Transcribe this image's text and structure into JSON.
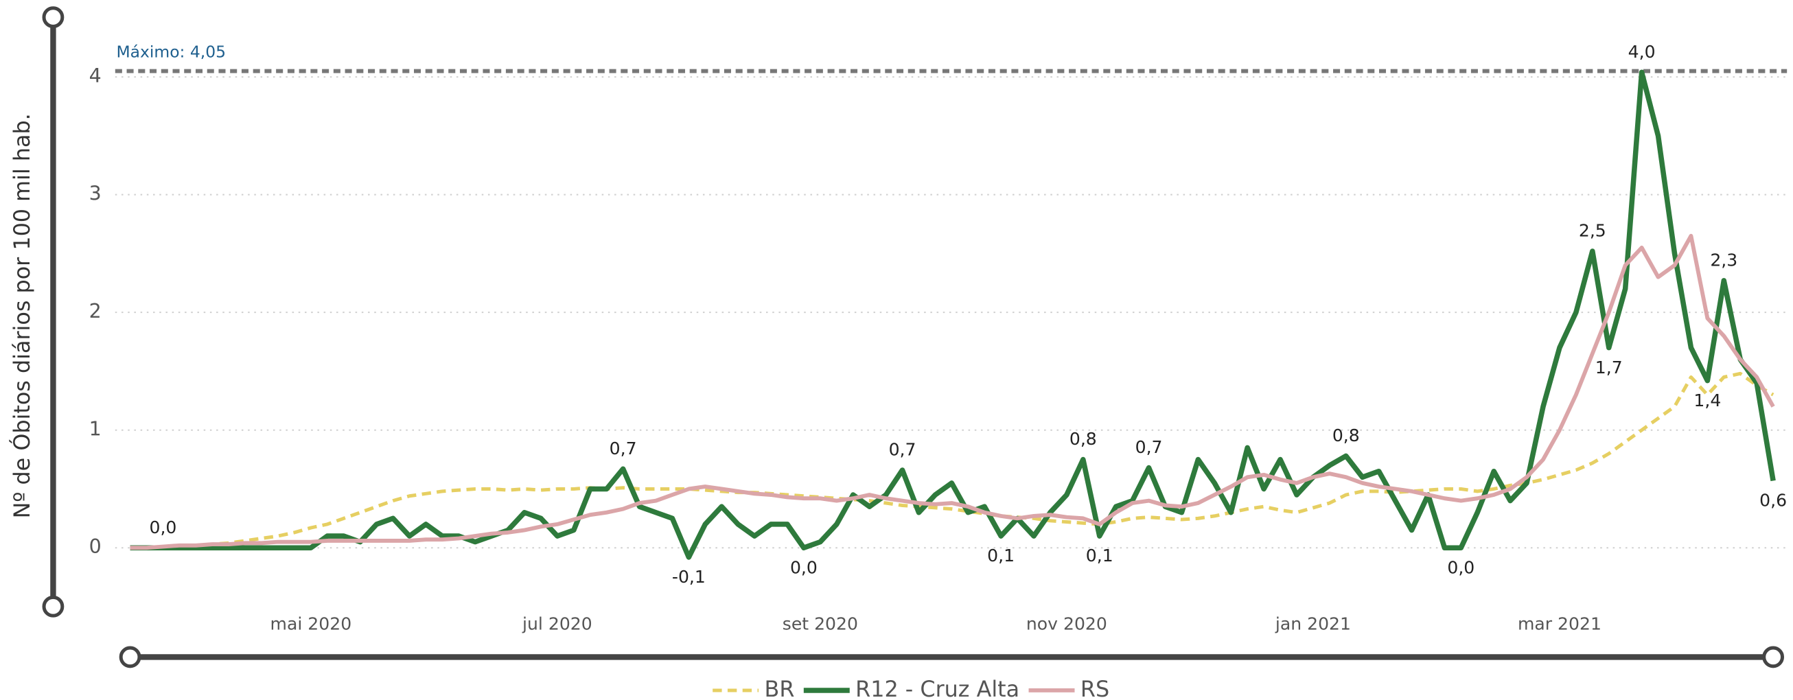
{
  "chart_data": {
    "type": "line",
    "y_axis_label": "Nº de Óbitos diários por 100 mil hab.",
    "categories": [
      null,
      null,
      null,
      null,
      null,
      null,
      null,
      null,
      null,
      null,
      null,
      "mai 2020",
      null,
      null,
      null,
      null,
      null,
      null,
      null,
      null,
      null,
      null,
      null,
      null,
      null,
      null,
      "jul 2020",
      null,
      null,
      null,
      null,
      null,
      null,
      null,
      null,
      null,
      null,
      null,
      null,
      null,
      null,
      null,
      "set 2020",
      null,
      null,
      null,
      null,
      null,
      null,
      null,
      null,
      null,
      null,
      null,
      null,
      null,
      null,
      "nov 2020",
      null,
      null,
      null,
      null,
      null,
      null,
      null,
      null,
      null,
      null,
      null,
      null,
      null,
      null,
      "jan 2021",
      null,
      null,
      null,
      null,
      null,
      null,
      null,
      null,
      null,
      null,
      null,
      null,
      null,
      null,
      "mar 2021",
      null,
      null,
      null,
      null,
      null,
      null,
      null,
      null,
      null,
      null,
      null,
      null,
      null
    ],
    "series": [
      {
        "name": "BR",
        "color": "#e6cf62",
        "style": "dashed",
        "width": 3,
        "values": [
          0,
          0,
          0,
          0.01,
          0.02,
          0.03,
          0.04,
          0.06,
          0.08,
          0.1,
          0.13,
          0.17,
          0.2,
          0.25,
          0.3,
          0.35,
          0.4,
          0.44,
          0.46,
          0.48,
          0.49,
          0.5,
          0.5,
          0.49,
          0.5,
          0.49,
          0.5,
          0.5,
          0.51,
          0.5,
          0.51,
          0.5,
          0.5,
          0.5,
          0.5,
          0.49,
          0.48,
          0.47,
          0.47,
          0.46,
          0.45,
          0.44,
          0.43,
          0.42,
          0.41,
          0.4,
          0.38,
          0.36,
          0.35,
          0.34,
          0.33,
          0.31,
          0.29,
          0.27,
          0.26,
          0.25,
          0.23,
          0.22,
          0.21,
          0.2,
          0.22,
          0.25,
          0.26,
          0.25,
          0.24,
          0.25,
          0.27,
          0.3,
          0.33,
          0.35,
          0.32,
          0.3,
          0.34,
          0.38,
          0.45,
          0.48,
          0.48,
          0.47,
          0.48,
          0.49,
          0.5,
          0.5,
          0.48,
          0.5,
          0.53,
          0.55,
          0.58,
          0.62,
          0.66,
          0.72,
          0.8,
          0.9,
          1.0,
          1.1,
          1.2,
          1.45,
          1.3,
          1.45,
          1.48,
          1.38,
          1.3
        ]
      },
      {
        "name": "R12 - Cruz Alta",
        "color": "#2e7a3c",
        "style": "solid",
        "width": 4.5,
        "values": [
          0,
          0,
          0,
          0,
          0,
          0,
          0,
          0,
          0,
          0,
          0,
          0,
          0.1,
          0.1,
          0.05,
          0.2,
          0.25,
          0.1,
          0.2,
          0.1,
          0.1,
          0.05,
          0.1,
          0.15,
          0.3,
          0.25,
          0.1,
          0.15,
          0.5,
          0.5,
          0.67,
          0.35,
          0.3,
          0.25,
          -0.08,
          0.2,
          0.35,
          0.2,
          0.1,
          0.2,
          0.2,
          0,
          0.05,
          0.2,
          0.45,
          0.35,
          0.45,
          0.66,
          0.3,
          0.45,
          0.55,
          0.3,
          0.35,
          0.1,
          0.25,
          0.1,
          0.3,
          0.45,
          0.75,
          0.1,
          0.35,
          0.4,
          0.68,
          0.35,
          0.3,
          0.75,
          0.55,
          0.3,
          0.85,
          0.5,
          0.75,
          0.45,
          0.6,
          0.7,
          0.78,
          0.6,
          0.65,
          0.4,
          0.15,
          0.45,
          0,
          0,
          0.3,
          0.65,
          0.4,
          0.55,
          1.2,
          1.7,
          2.0,
          2.52,
          1.7,
          2.2,
          4.04,
          3.5,
          2.5,
          1.7,
          1.42,
          2.27,
          1.6,
          1.4,
          0.57
        ],
        "value_labels": [
          null,
          null,
          "0,0",
          null,
          null,
          null,
          null,
          null,
          null,
          null,
          null,
          null,
          null,
          null,
          null,
          null,
          null,
          null,
          null,
          null,
          null,
          null,
          null,
          null,
          null,
          null,
          null,
          null,
          null,
          null,
          "0,7",
          null,
          null,
          null,
          "-0,1",
          null,
          null,
          null,
          null,
          null,
          null,
          "0,0",
          null,
          null,
          null,
          null,
          null,
          "0,7",
          null,
          null,
          null,
          null,
          null,
          "0,1",
          null,
          null,
          null,
          null,
          "0,8",
          "0,1",
          null,
          null,
          "0,7",
          null,
          null,
          null,
          null,
          null,
          null,
          null,
          null,
          null,
          null,
          null,
          "0,8",
          null,
          null,
          null,
          null,
          null,
          null,
          "0,0",
          null,
          null,
          null,
          null,
          null,
          null,
          null,
          "2,5",
          "1,7",
          null,
          "4,0",
          null,
          null,
          null,
          "1,4",
          "2,3",
          null,
          null,
          "0,6"
        ]
      },
      {
        "name": "RS",
        "color": "#dba5a8",
        "style": "solid",
        "width": 3.5,
        "values": [
          0,
          0,
          0.01,
          0.02,
          0.02,
          0.03,
          0.03,
          0.04,
          0.04,
          0.05,
          0.05,
          0.05,
          0.06,
          0.06,
          0.06,
          0.06,
          0.06,
          0.06,
          0.07,
          0.07,
          0.08,
          0.1,
          0.12,
          0.13,
          0.15,
          0.18,
          0.2,
          0.24,
          0.28,
          0.3,
          0.33,
          0.38,
          0.4,
          0.45,
          0.5,
          0.52,
          0.5,
          0.48,
          0.46,
          0.45,
          0.43,
          0.42,
          0.42,
          0.4,
          0.42,
          0.45,
          0.42,
          0.4,
          0.38,
          0.37,
          0.38,
          0.35,
          0.3,
          0.27,
          0.25,
          0.27,
          0.28,
          0.26,
          0.25,
          0.2,
          0.3,
          0.38,
          0.4,
          0.36,
          0.35,
          0.38,
          0.45,
          0.52,
          0.6,
          0.62,
          0.58,
          0.55,
          0.6,
          0.63,
          0.6,
          0.55,
          0.52,
          0.5,
          0.48,
          0.45,
          0.42,
          0.4,
          0.42,
          0.45,
          0.5,
          0.6,
          0.75,
          1.0,
          1.3,
          1.65,
          2.0,
          2.4,
          2.55,
          2.3,
          2.4,
          2.65,
          1.95,
          1.8,
          1.6,
          1.45,
          1.2
        ]
      }
    ],
    "reference_line": {
      "value": 4.05,
      "label": "Máximo: 4,05",
      "color": "#1e5f8e"
    },
    "ylim": [
      -0.45,
      4.4
    ],
    "yticks": [
      0,
      1,
      2,
      3,
      4
    ],
    "grid": true,
    "legend": "bottom"
  }
}
